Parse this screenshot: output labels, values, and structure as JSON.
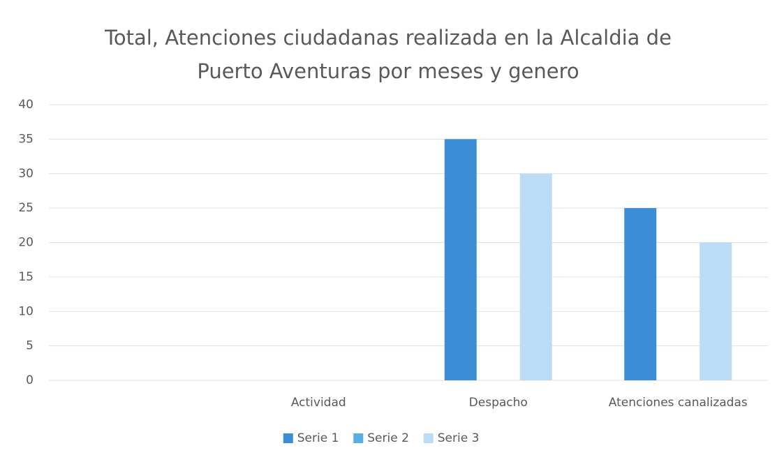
{
  "chart_data": {
    "type": "bar",
    "title": "Total, Atenciones ciudadanas realizada en la Alcaldia de Puerto Aventuras por meses y genero",
    "categories": [
      null,
      "Actividad",
      "Despacho",
      "Atenciones canalizadas"
    ],
    "series": [
      {
        "name": "Serie 1",
        "color": "#3b8ed6",
        "values": [
          null,
          null,
          35,
          25
        ]
      },
      {
        "name": "Serie 2",
        "color": "#5aaee8",
        "values": [
          null,
          null,
          null,
          null
        ]
      },
      {
        "name": "Serie 3",
        "color": "#bcdcf5",
        "values": [
          null,
          null,
          30,
          20
        ]
      }
    ],
    "ylim": [
      0,
      40
    ],
    "yticks": [
      0,
      5,
      10,
      15,
      20,
      25,
      30,
      35,
      40
    ],
    "grid": true,
    "legend": "bottom"
  }
}
